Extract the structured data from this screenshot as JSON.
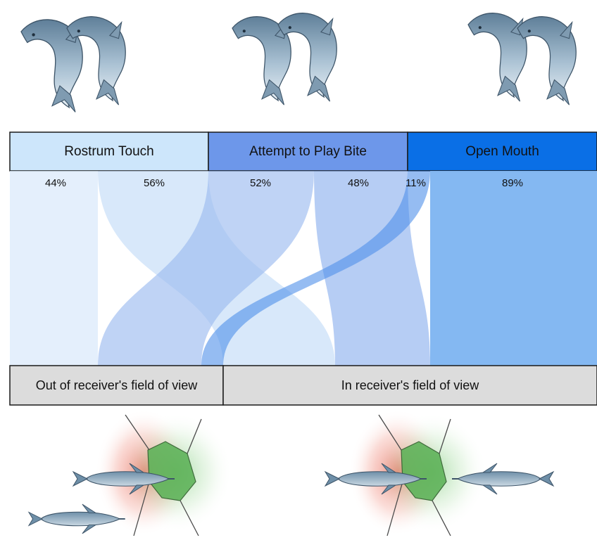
{
  "categories": [
    {
      "label": "Rostrum Touch",
      "color": "#cde6fb"
    },
    {
      "label": "Attempt  to Play Bite",
      "color": "#6d97ea"
    },
    {
      "label": "Open Mouth",
      "color": "#0a6fe6"
    }
  ],
  "percentages": {
    "rostrum_out": "44%",
    "rostrum_in": "56%",
    "bite_out": "52%",
    "bite_in": "48%",
    "mouth_out": "11%",
    "mouth_in": "89%"
  },
  "bottom": {
    "out_label": "Out of receiver's field of view",
    "in_label": "In receiver's field of view"
  },
  "chart_data": {
    "type": "sankey",
    "sources": [
      "Rostrum Touch",
      "Attempt  to Play Bite",
      "Open Mouth"
    ],
    "targets": [
      "Out of receiver's field of view",
      "In receiver's field of view"
    ],
    "flows": [
      {
        "source": "Rostrum Touch",
        "target": "Out of receiver's field of view",
        "value": 44
      },
      {
        "source": "Rostrum Touch",
        "target": "In receiver's field of view",
        "value": 56
      },
      {
        "source": "Attempt  to Play Bite",
        "target": "Out of receiver's field of view",
        "value": 52
      },
      {
        "source": "Attempt  to Play Bite",
        "target": "In receiver's field of view",
        "value": 48
      },
      {
        "source": "Open Mouth",
        "target": "Out of receiver's field of view",
        "value": 11
      },
      {
        "source": "Open Mouth",
        "target": "In receiver's field of view",
        "value": 89
      }
    ]
  }
}
